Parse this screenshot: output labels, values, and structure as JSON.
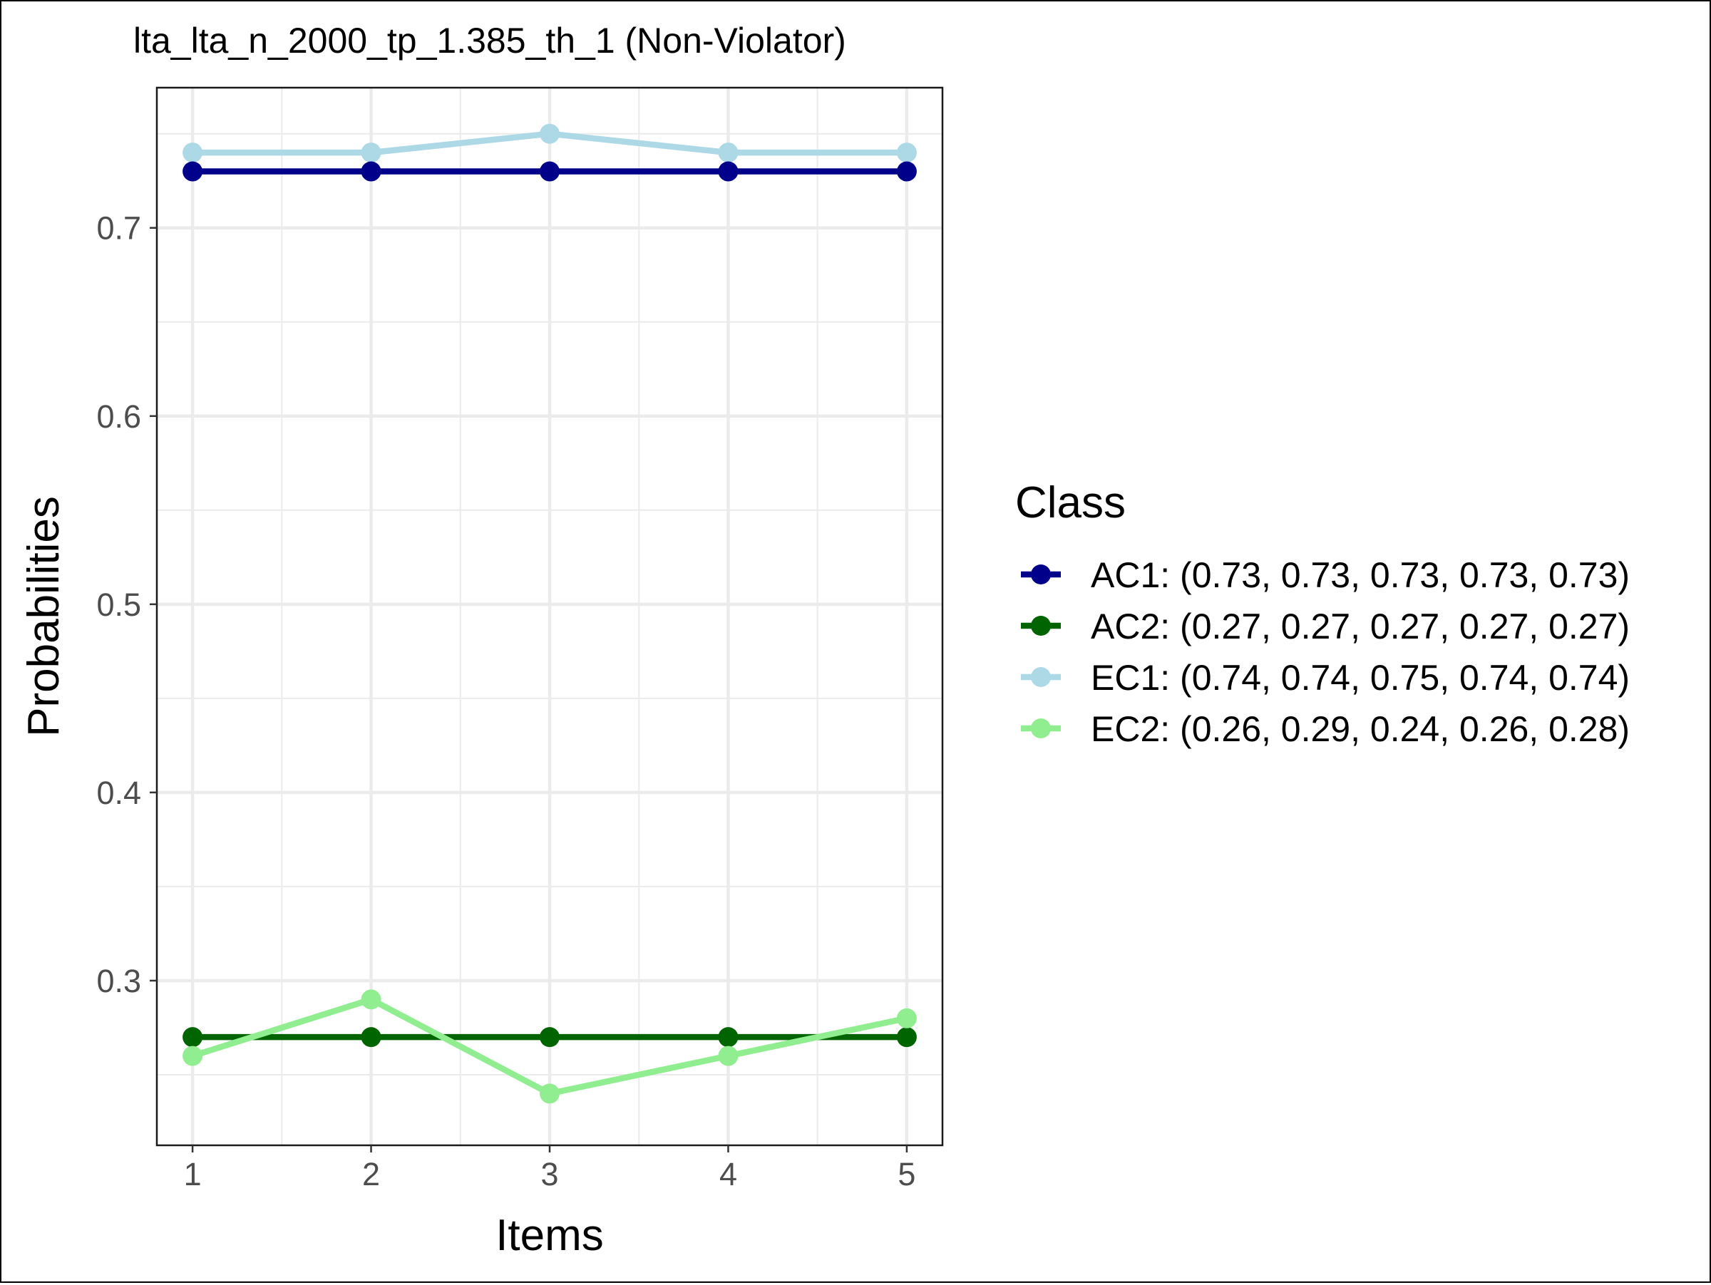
{
  "chart_data": {
    "type": "line",
    "title": "lta_lta_n_2000_tp_1.385_th_1 (Non-Violator)",
    "xlabel": "Items",
    "ylabel": "Probabilities",
    "x": [
      1,
      2,
      3,
      4,
      5
    ],
    "x_tick_labels": [
      "1",
      "2",
      "3",
      "4",
      "5"
    ],
    "xlim": [
      0.8,
      5.2
    ],
    "ylim": [
      0.2125,
      0.7745
    ],
    "y_ticks": [
      0.3,
      0.4,
      0.5,
      0.6,
      0.7
    ],
    "y_tick_labels": [
      "0.3",
      "0.4",
      "0.5",
      "0.6",
      "0.7"
    ],
    "grid": true,
    "legend": {
      "title": "Class",
      "position": "right"
    },
    "series": [
      {
        "name": "AC1",
        "label": "AC1: (0.73, 0.73, 0.73, 0.73, 0.73)",
        "color": "#00008b",
        "values": [
          0.73,
          0.73,
          0.73,
          0.73,
          0.73
        ]
      },
      {
        "name": "AC2",
        "label": "AC2: (0.27, 0.27, 0.27, 0.27, 0.27)",
        "color": "#006400",
        "values": [
          0.27,
          0.27,
          0.27,
          0.27,
          0.27
        ]
      },
      {
        "name": "EC1",
        "label": "EC1: (0.74, 0.74, 0.75, 0.74, 0.74)",
        "color": "#add8e6",
        "values": [
          0.74,
          0.74,
          0.75,
          0.74,
          0.74
        ]
      },
      {
        "name": "EC2",
        "label": "EC2: (0.26, 0.29, 0.24, 0.26, 0.28)",
        "color": "#90ee90",
        "values": [
          0.26,
          0.29,
          0.24,
          0.26,
          0.28
        ]
      }
    ],
    "draw_order": [
      "EC1",
      "AC1",
      "AC2",
      "EC2"
    ]
  }
}
